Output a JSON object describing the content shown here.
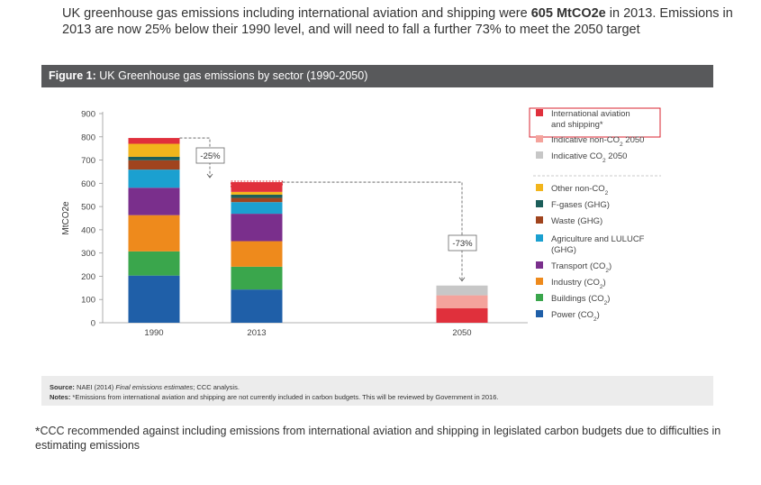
{
  "intro": {
    "part1": "UK greenhouse gas emissions including international aviation and shipping were ",
    "bold": "605 MtCO2e",
    "part2": " in 2013. Emissions in 2013 are now 25% below their 1990 level, and will need to fall a further 73% to meet the 2050 target"
  },
  "figure": {
    "label": "Figure 1:",
    "title": "UK Greenhouse gas emissions by sector (1990-2050)",
    "source_label": "Source:",
    "source_text": " NAEI (2014) ",
    "source_italic": "Final emissions estimates",
    "source_tail": "; CCC analysis.",
    "notes_label": "Notes:",
    "notes_text": " *Emissions from international aviation and shipping are not currently included in carbon budgets. This will be reviewed by Government in 2016."
  },
  "footnote": {
    "star": "*",
    "text": "CCC recommended against including emissions from international aviation and shipping in legislated carbon budgets due to difficulties in estimating emissions"
  },
  "chart_data": {
    "type": "bar",
    "stacked": true,
    "ylabel": "MtCO2e",
    "ylim": [
      0,
      900
    ],
    "yticks": [
      0,
      100,
      200,
      300,
      400,
      500,
      600,
      700,
      800,
      900
    ],
    "categories": [
      "1990",
      "2013",
      "2050"
    ],
    "series": [
      {
        "name": "Power (CO2)",
        "color": "#1f5fa8",
        "values": [
          203,
          143,
          0
        ]
      },
      {
        "name": "Buildings (CO2)",
        "color": "#3aa64c",
        "values": [
          104,
          98,
          0
        ]
      },
      {
        "name": "Industry (CO2)",
        "color": "#ee8a1c",
        "values": [
          156,
          110,
          0
        ]
      },
      {
        "name": "Transport (CO2)",
        "color": "#7a2f8c",
        "values": [
          118,
          118,
          0
        ]
      },
      {
        "name": "Agriculture and LULUCF (GHG)",
        "color": "#1ba0d0",
        "values": [
          78,
          50,
          0
        ]
      },
      {
        "name": "Waste (GHG)",
        "color": "#a0441e",
        "values": [
          40,
          18,
          0
        ]
      },
      {
        "name": "F-gases (GHG)",
        "color": "#1c5e5a",
        "values": [
          15,
          14,
          0
        ]
      },
      {
        "name": "Other non-CO2",
        "color": "#f2b51c",
        "values": [
          56,
          12,
          0
        ]
      },
      {
        "name": "International aviation and shipping*",
        "color": "#e0303c",
        "values": [
          25,
          42,
          62
        ]
      },
      {
        "name": "Indicative non-CO2 2050",
        "color": "#f4a39c",
        "values": [
          0,
          0,
          56
        ]
      },
      {
        "name": "Indicative CO2 2050",
        "color": "#c7c7c7",
        "values": [
          0,
          0,
          42
        ]
      }
    ],
    "annotations": [
      {
        "text": "-25%",
        "from": "1990",
        "to": "2013"
      },
      {
        "text": "-73%",
        "from": "2013",
        "to": "2050"
      }
    ],
    "legend_top": [
      {
        "label": "International aviation and shipping*",
        "color": "#e0303c",
        "highlighted": true
      },
      {
        "label": "Indicative non-CO2 2050",
        "color": "#f4a39c"
      },
      {
        "label": "Indicative CO2 2050",
        "color": "#c7c7c7"
      }
    ],
    "legend_bottom": [
      {
        "label": "Other non-CO2",
        "color": "#f2b51c"
      },
      {
        "label": "F-gases (GHG)",
        "color": "#1c5e5a"
      },
      {
        "label": "Waste (GHG)",
        "color": "#a0441e"
      },
      {
        "label": "Agriculture and LULUCF (GHG)",
        "color": "#1ba0d0"
      },
      {
        "label": "Transport (CO2)",
        "color": "#7a2f8c"
      },
      {
        "label": "Industry (CO2)",
        "color": "#ee8a1c"
      },
      {
        "label": "Buildings (CO2)",
        "color": "#3aa64c"
      },
      {
        "label": "Power (CO2)",
        "color": "#1f5fa8"
      }
    ],
    "legend_placement": "right",
    "grid": false
  }
}
